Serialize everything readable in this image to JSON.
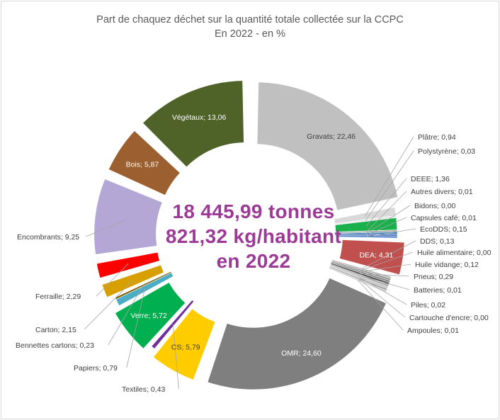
{
  "chart_data": {
    "type": "pie",
    "variant": "exploded-doughnut",
    "title": "Part de chaquez déchet sur la quantité totale collectée sur la CCPC",
    "subtitle": "En 2022 - en %",
    "center_text": [
      "18 445,99 tonnes",
      "821,32 kg/habitant",
      "en 2022"
    ],
    "label_format": "{name}; {value}",
    "slices": [
      {
        "name": "Gravats",
        "display": "22,46",
        "value": 22.46,
        "color": "#c0c0c0"
      },
      {
        "name": "Plâtre",
        "display": "0,94",
        "value": 0.94,
        "color": "#d9d9d9"
      },
      {
        "name": "Polystyrène",
        "display": "0,03",
        "value": 0.03,
        "color": "#e7e6e6"
      },
      {
        "name": "DEEE",
        "display": "1,36",
        "value": 1.36,
        "color": "#1bb04b"
      },
      {
        "name": "Autres divers",
        "display": "0,01",
        "value": 0.01,
        "color": "#a5a5a5"
      },
      {
        "name": "Bidons",
        "display": "0,00",
        "value": 0.0,
        "color": "#2e75b6"
      },
      {
        "name": "Capsules café",
        "display": "0,01",
        "value": 0.01,
        "color": "#3b6db5"
      },
      {
        "name": "EcoDDS",
        "display": "0,15",
        "value": 0.15,
        "color": "#4472c4"
      },
      {
        "name": "DEA",
        "display": "4,31",
        "value": 4.31,
        "color": "#c0504d"
      },
      {
        "name": "DDS",
        "display": "0,13",
        "value": 0.13,
        "color": "#b4b4b4"
      },
      {
        "name": "Huile alimentaire",
        "display": "0,00",
        "value": 0.0,
        "color": "#8c8c8c"
      },
      {
        "name": "Huile vidange",
        "display": "0,12",
        "value": 0.12,
        "color": "#7f7f7f"
      },
      {
        "name": "Pneus",
        "display": "0,29",
        "value": 0.29,
        "color": "#595959"
      },
      {
        "name": "Batteries",
        "display": "0,01",
        "value": 0.01,
        "color": "#a6a6a6"
      },
      {
        "name": "Piles",
        "display": "0,02",
        "value": 0.02,
        "color": "#bfbfbf"
      },
      {
        "name": "Cartouche d'encre",
        "display": "0,00",
        "value": 0.0,
        "color": "#9e9e9e"
      },
      {
        "name": "Ampoules",
        "display": "0,01",
        "value": 0.01,
        "color": "#d0d0d0"
      },
      {
        "name": "OMR",
        "display": "24,60",
        "value": 24.6,
        "color": "#7f7f7f"
      },
      {
        "name": "CS",
        "display": "5,79",
        "value": 5.79,
        "color": "#ffcc00"
      },
      {
        "name": "Textiles",
        "display": "0,43",
        "value": 0.43,
        "color": "#7030a0"
      },
      {
        "name": "Verre",
        "display": "5,72",
        "value": 5.72,
        "color": "#00b050"
      },
      {
        "name": "Papiers",
        "display": "0,79",
        "value": 0.79,
        "color": "#4bacc6"
      },
      {
        "name": "Bennettes cartons",
        "display": "0,23",
        "value": 0.23,
        "color": "#7f6000"
      },
      {
        "name": "Carton",
        "display": "2,15",
        "value": 2.15,
        "color": "#d89f00"
      },
      {
        "name": "Ferraille",
        "display": "2,29",
        "value": 2.29,
        "color": "#ff0000"
      },
      {
        "name": "Encombrants",
        "display": "9,25",
        "value": 9.25,
        "color": "#b4a7d6"
      },
      {
        "name": "Bois",
        "display": "5,87",
        "value": 5.87,
        "color": "#9c5f2f"
      },
      {
        "name": "Végétaux",
        "display": "13,06",
        "value": 13.06,
        "color": "#4f6228"
      }
    ]
  }
}
